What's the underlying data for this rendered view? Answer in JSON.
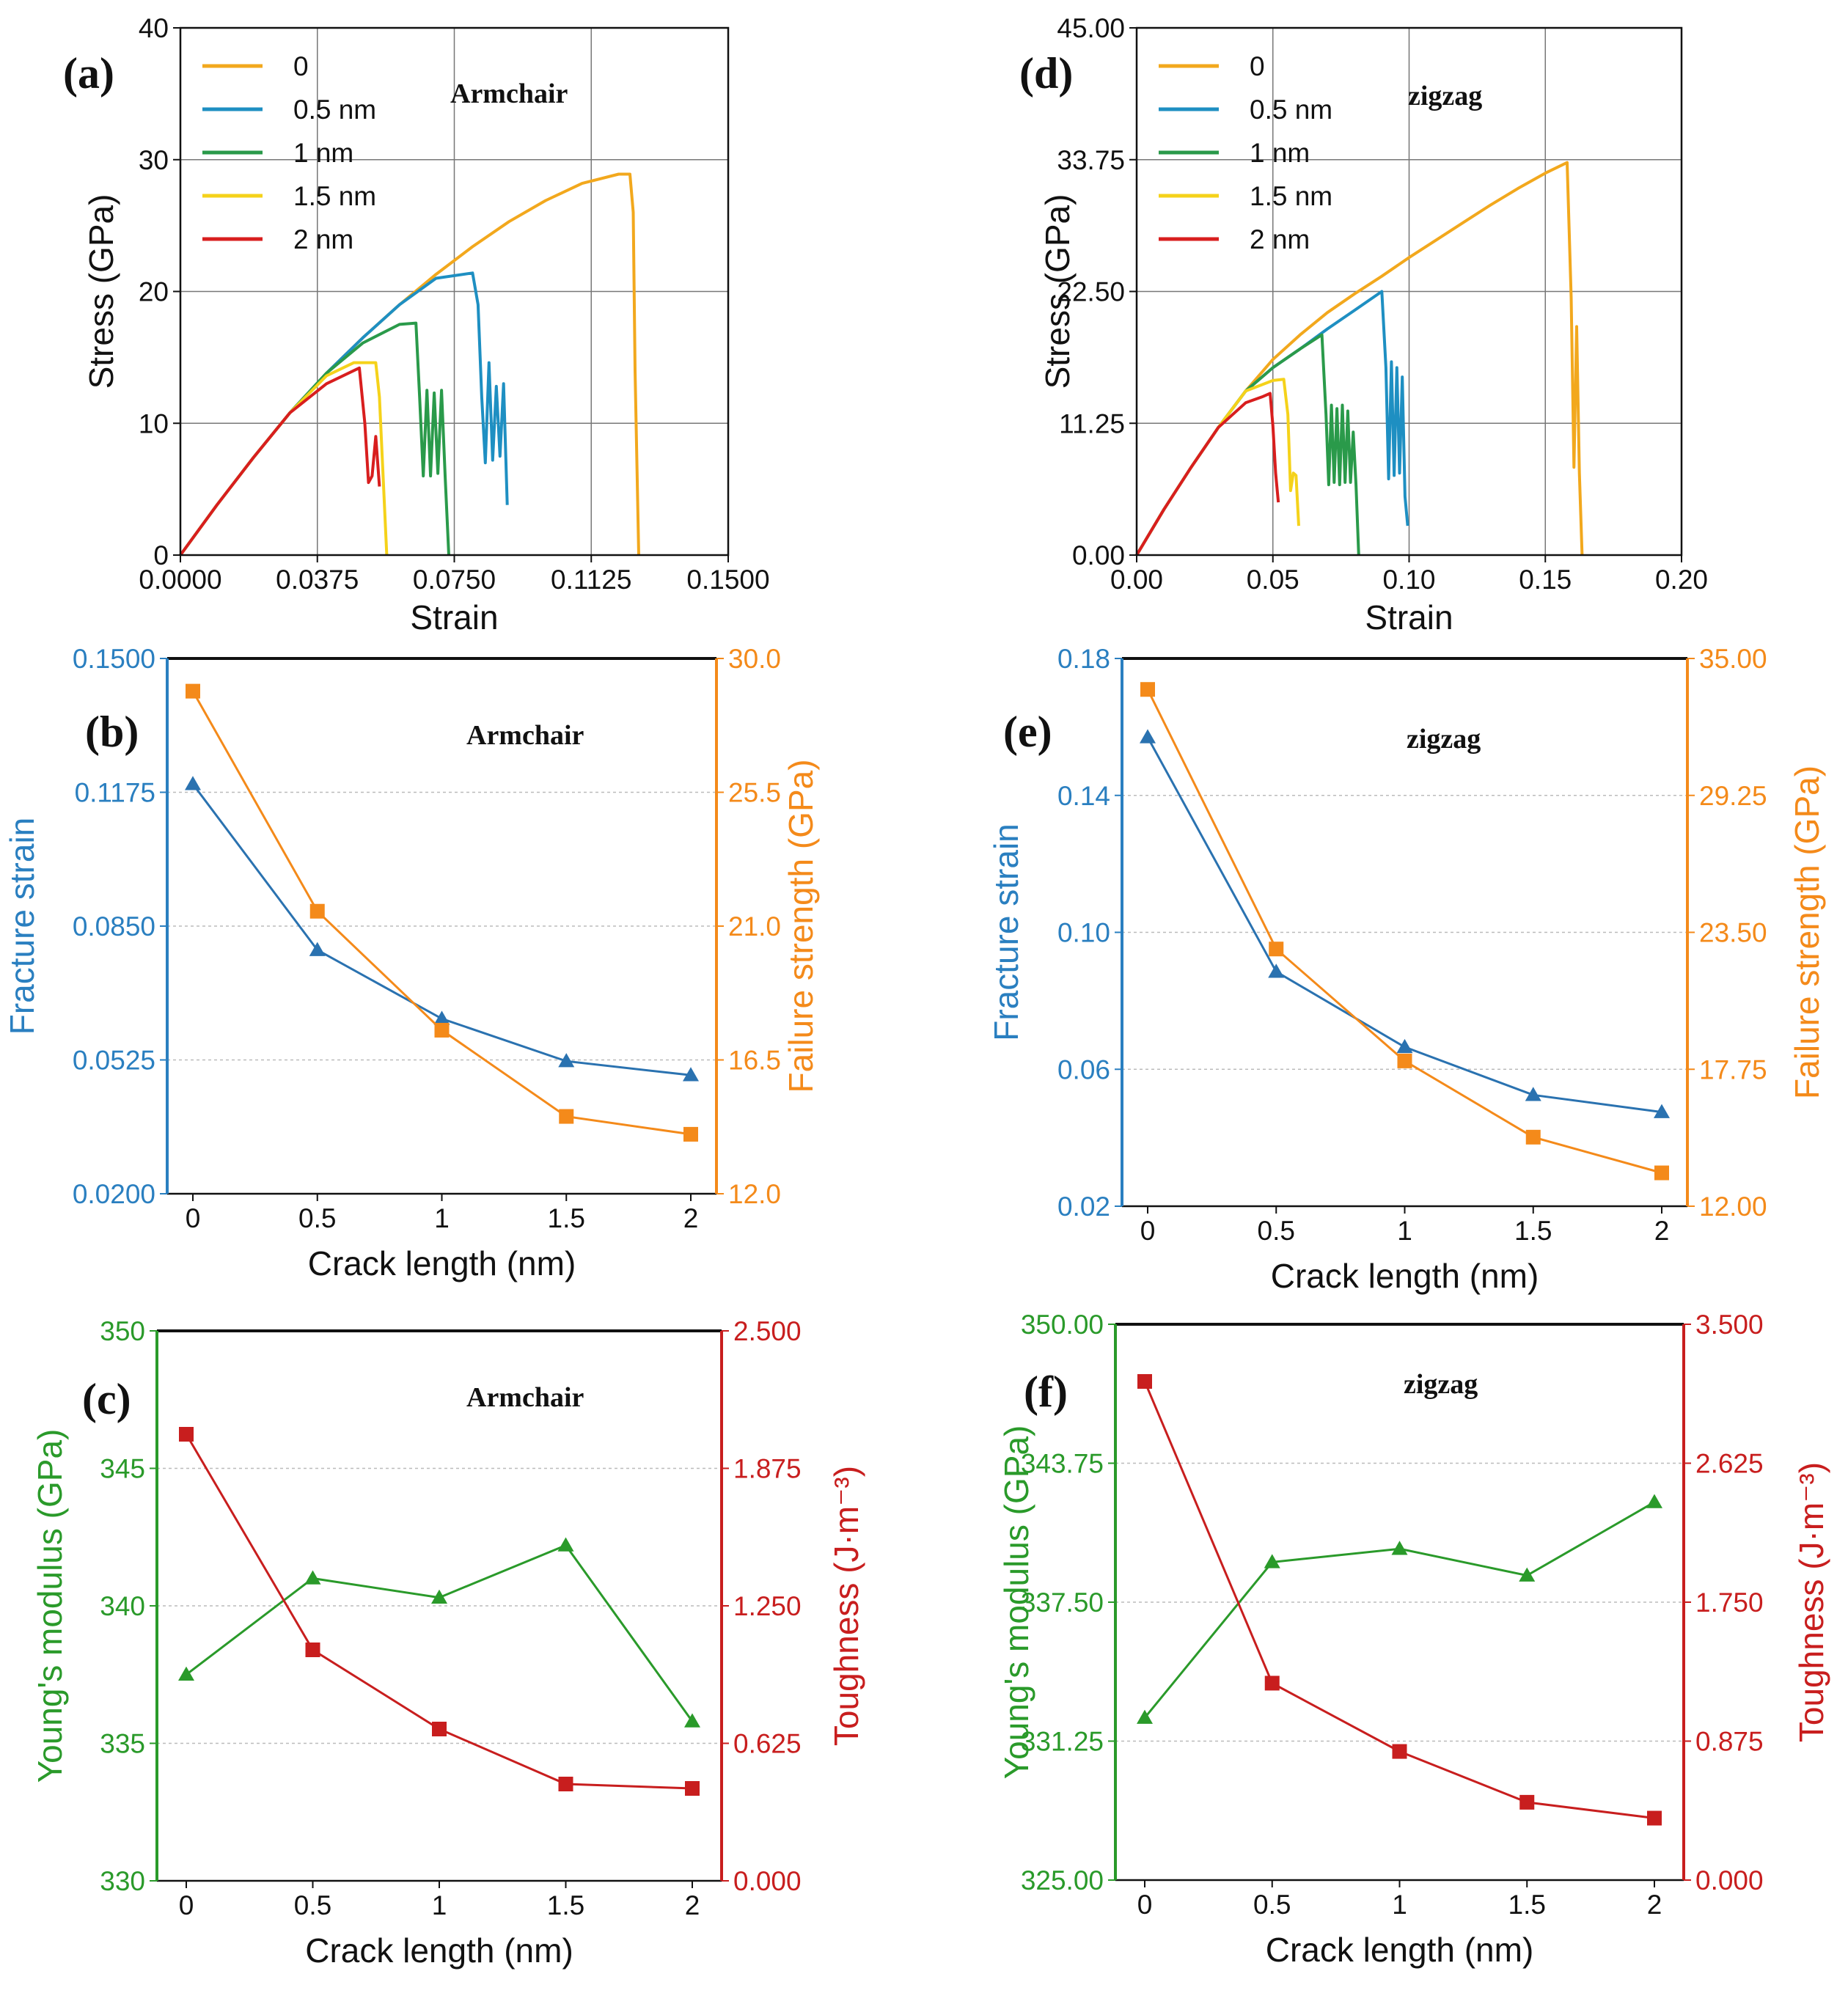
{
  "chart_data": [
    {
      "id": "a",
      "panel_label": "(a)",
      "type": "line",
      "annotation": "Armchair",
      "xlabel": "Strain",
      "ylabel": "Stress (GPa)",
      "xlim": [
        0,
        0.15
      ],
      "ylim": [
        0,
        40
      ],
      "xticks": [
        0,
        0.0375,
        0.075,
        0.1125,
        0.15
      ],
      "xtick_labels": [
        "0.0000",
        "0.0375",
        "0.0750",
        "0.1125",
        "0.1500"
      ],
      "yticks": [
        0,
        10,
        20,
        30,
        40
      ],
      "ytick_labels": [
        "0",
        "10",
        "20",
        "30",
        "40"
      ],
      "grid": true,
      "legend": "top-left",
      "series": [
        {
          "name": "0",
          "color": "#f2a81d",
          "x": [
            0,
            0.01,
            0.02,
            0.03,
            0.04,
            0.05,
            0.06,
            0.07,
            0.08,
            0.09,
            0.1,
            0.11,
            0.12,
            0.1231,
            0.124,
            0.1245,
            0.1255
          ],
          "y": [
            0,
            3.8,
            7.4,
            10.8,
            13.8,
            16.5,
            19.0,
            21.3,
            23.4,
            25.3,
            26.9,
            28.2,
            28.9,
            28.9,
            26.0,
            14.0,
            0
          ]
        },
        {
          "name": "0.5 nm",
          "color": "#1e8fc2",
          "x": [
            0,
            0.01,
            0.02,
            0.03,
            0.04,
            0.05,
            0.06,
            0.07,
            0.08,
            0.0815,
            0.0825,
            0.0835,
            0.0845,
            0.0855,
            0.0865,
            0.0875,
            0.0885,
            0.0895
          ],
          "y": [
            0,
            3.8,
            7.4,
            10.8,
            13.8,
            16.5,
            19.0,
            21.0,
            21.4,
            19.0,
            12.0,
            7.0,
            14.6,
            7.2,
            12.8,
            7.5,
            13.0,
            3.8
          ]
        },
        {
          "name": "1 nm",
          "color": "#2a9a4a",
          "x": [
            0,
            0.01,
            0.02,
            0.03,
            0.04,
            0.05,
            0.06,
            0.0645,
            0.0655,
            0.0665,
            0.0675,
            0.0685,
            0.0695,
            0.0705,
            0.0715,
            0.0725,
            0.0735
          ],
          "y": [
            0,
            3.8,
            7.4,
            10.8,
            13.8,
            16.1,
            17.5,
            17.6,
            12.0,
            6.0,
            12.5,
            6.0,
            12.3,
            6.2,
            12.5,
            6.0,
            0
          ]
        },
        {
          "name": "1.5 nm",
          "color": "#f5d21a",
          "x": [
            0,
            0.01,
            0.02,
            0.03,
            0.04,
            0.0475,
            0.0535,
            0.0545,
            0.0555,
            0.0565
          ],
          "y": [
            0,
            3.8,
            7.4,
            10.8,
            13.6,
            14.6,
            14.6,
            12.0,
            6.0,
            0
          ]
        },
        {
          "name": "2 nm",
          "color": "#d81e1e",
          "x": [
            0,
            0.01,
            0.02,
            0.03,
            0.04,
            0.049,
            0.0505,
            0.0515,
            0.0525,
            0.0535,
            0.0545
          ],
          "y": [
            0,
            3.8,
            7.4,
            10.8,
            13.0,
            14.2,
            10.0,
            5.5,
            6.0,
            9.0,
            5.2
          ]
        }
      ]
    },
    {
      "id": "d",
      "panel_label": "(d)",
      "type": "line",
      "annotation": "zigzag",
      "xlabel": "Strain",
      "ylabel": "Stress (GPa)",
      "xlim": [
        0,
        0.2
      ],
      "ylim": [
        0,
        45
      ],
      "xticks": [
        0,
        0.05,
        0.1,
        0.15,
        0.2
      ],
      "xtick_labels": [
        "0.00",
        "0.05",
        "0.10",
        "0.15",
        "0.20"
      ],
      "yticks": [
        0,
        11.25,
        22.5,
        33.75,
        45
      ],
      "ytick_labels": [
        "0.00",
        "11.25",
        "22.50",
        "33.75",
        "45.00"
      ],
      "grid": true,
      "legend": "top-left",
      "series": [
        {
          "name": "0",
          "color": "#f2a81d",
          "x": [
            0,
            0.01,
            0.02,
            0.03,
            0.04,
            0.05,
            0.06,
            0.07,
            0.08,
            0.09,
            0.1,
            0.11,
            0.12,
            0.13,
            0.14,
            0.15,
            0.158,
            0.1595,
            0.1605,
            0.1615,
            0.1625,
            0.1635
          ],
          "y": [
            0,
            3.9,
            7.5,
            10.9,
            14.0,
            16.7,
            18.8,
            20.7,
            22.3,
            23.8,
            25.4,
            26.9,
            28.4,
            29.9,
            31.3,
            32.6,
            33.5,
            22.0,
            7.5,
            19.5,
            7.0,
            0
          ]
        },
        {
          "name": "0.5 nm",
          "color": "#1e8fc2",
          "x": [
            0,
            0.01,
            0.02,
            0.03,
            0.04,
            0.05,
            0.06,
            0.07,
            0.08,
            0.09,
            0.0915,
            0.0925,
            0.0935,
            0.0945,
            0.0955,
            0.0965,
            0.0975,
            0.0985,
            0.0995
          ],
          "y": [
            0,
            3.9,
            7.5,
            10.9,
            14.0,
            16.0,
            17.6,
            19.3,
            20.9,
            22.5,
            16.0,
            6.5,
            16.5,
            6.8,
            16.0,
            7.0,
            15.2,
            5.0,
            2.5
          ]
        },
        {
          "name": "1 nm",
          "color": "#2a9a4a",
          "x": [
            0,
            0.01,
            0.02,
            0.03,
            0.04,
            0.05,
            0.06,
            0.068,
            0.0695,
            0.0705,
            0.0715,
            0.0725,
            0.0735,
            0.0745,
            0.0755,
            0.0765,
            0.0775,
            0.0785,
            0.0795,
            0.0805,
            0.0815
          ],
          "y": [
            0,
            3.9,
            7.5,
            10.9,
            14.0,
            16.0,
            17.6,
            18.8,
            12.0,
            6.0,
            12.8,
            6.2,
            12.5,
            6.0,
            12.8,
            6.2,
            12.3,
            6.2,
            10.5,
            6.0,
            0
          ]
        },
        {
          "name": "1.5 nm",
          "color": "#f5d21a",
          "x": [
            0,
            0.01,
            0.02,
            0.03,
            0.04,
            0.05,
            0.054,
            0.0555,
            0.0565,
            0.0575,
            0.0585,
            0.0595
          ],
          "y": [
            0,
            3.9,
            7.5,
            10.9,
            14.0,
            14.9,
            15.0,
            12.0,
            5.5,
            7.0,
            6.8,
            2.5
          ]
        },
        {
          "name": "2 nm",
          "color": "#d81e1e",
          "x": [
            0,
            0.01,
            0.02,
            0.03,
            0.04,
            0.046,
            0.049,
            0.05,
            0.051,
            0.052
          ],
          "y": [
            0,
            3.9,
            7.5,
            10.9,
            13.0,
            13.5,
            13.8,
            11.0,
            7.0,
            4.5
          ]
        }
      ]
    },
    {
      "id": "b",
      "panel_label": "(b)",
      "type": "line",
      "annotation": "Armchair",
      "xlabel": "Crack length (nm)",
      "ylabel": "Fracture strain",
      "y2label": "Failure strength (GPa)",
      "categories": [
        "0",
        "0.5",
        "1",
        "1.5",
        "2"
      ],
      "ylim": [
        0.02,
        0.15
      ],
      "yticks": [
        0.02,
        0.0525,
        0.085,
        0.1175,
        0.15
      ],
      "ytick_labels": [
        "0.0200",
        "0.0525",
        "0.0850",
        "0.1175",
        "0.1500"
      ],
      "y2lim": [
        12,
        30
      ],
      "y2ticks": [
        12,
        16.5,
        21,
        25.5,
        30
      ],
      "y2tick_labels": [
        "12.0",
        "16.5",
        "21.0",
        "25.5",
        "30.0"
      ],
      "left_color": "#2a7fc0",
      "right_color": "#f48a1a",
      "series": [
        {
          "name": "Fracture strain",
          "axis": "left",
          "marker": "triangle",
          "color": "#2a72b0",
          "values": [
            0.1195,
            0.0792,
            0.0625,
            0.0522,
            0.0488
          ]
        },
        {
          "name": "Failure strength",
          "axis": "right",
          "marker": "square",
          "color": "#f48a1a",
          "values": [
            28.9,
            21.5,
            17.5,
            14.6,
            14.0
          ]
        }
      ]
    },
    {
      "id": "e",
      "panel_label": "(e)",
      "type": "line",
      "annotation": "zigzag",
      "xlabel": "Crack length (nm)",
      "ylabel": "Fracture strain",
      "y2label": "Failure strength (GPa)",
      "categories": [
        "0",
        "0.5",
        "1",
        "1.5",
        "2"
      ],
      "ylim": [
        0.02,
        0.18
      ],
      "yticks": [
        0.02,
        0.06,
        0.1,
        0.14,
        0.18
      ],
      "ytick_labels": [
        "0.02",
        "0.06",
        "0.10",
        "0.14",
        "0.18"
      ],
      "y2lim": [
        12,
        35
      ],
      "y2ticks": [
        12,
        17.75,
        23.5,
        29.25,
        35
      ],
      "y2tick_labels": [
        "12.00",
        "17.75",
        "23.50",
        "29.25",
        "35.00"
      ],
      "left_color": "#2a7fc0",
      "right_color": "#f48a1a",
      "series": [
        {
          "name": "Fracture strain",
          "axis": "left",
          "marker": "triangle",
          "color": "#2a72b0",
          "values": [
            0.157,
            0.0885,
            0.0665,
            0.0525,
            0.0475
          ]
        },
        {
          "name": "Failure strength",
          "axis": "right",
          "marker": "square",
          "color": "#f48a1a",
          "values": [
            33.7,
            22.8,
            18.1,
            14.9,
            13.4
          ]
        }
      ]
    },
    {
      "id": "c",
      "panel_label": "(c)",
      "type": "line",
      "annotation": "Armchair",
      "xlabel": "Crack length (nm)",
      "ylabel": "Young's modulus (GPa)",
      "y2label": "Toughness (J·m⁻³)",
      "categories": [
        "0",
        "0.5",
        "1",
        "1.5",
        "2"
      ],
      "ylim": [
        330,
        350
      ],
      "yticks": [
        330,
        335,
        340,
        345,
        350
      ],
      "ytick_labels": [
        "330",
        "335",
        "340",
        "345",
        "350"
      ],
      "y2lim": [
        0,
        2.5
      ],
      "y2ticks": [
        0,
        0.625,
        1.25,
        1.875,
        2.5
      ],
      "y2tick_labels": [
        "0.000",
        "0.625",
        "1.250",
        "1.875",
        "2.500"
      ],
      "left_color": "#2a9a2a",
      "right_color": "#c81e1e",
      "series": [
        {
          "name": "Young's modulus",
          "axis": "left",
          "marker": "triangle",
          "color": "#2a9a2a",
          "values": [
            337.5,
            341.0,
            340.3,
            342.2,
            335.8
          ]
        },
        {
          "name": "Toughness",
          "axis": "right",
          "marker": "square",
          "color": "#c81e1e",
          "values": [
            2.03,
            1.05,
            0.69,
            0.44,
            0.42
          ]
        }
      ]
    },
    {
      "id": "f",
      "panel_label": "(f)",
      "type": "line",
      "annotation": "zigzag",
      "xlabel": "Crack length (nm)",
      "ylabel": "Young's modulus (GPa)",
      "y2label": "Toughness (J·m⁻³)",
      "categories": [
        "0",
        "0.5",
        "1",
        "1.5",
        "2"
      ],
      "ylim": [
        325,
        350
      ],
      "yticks": [
        325,
        331.25,
        337.5,
        343.75,
        350
      ],
      "ytick_labels": [
        "325.00",
        "331.25",
        "337.50",
        "343.75",
        "350.00"
      ],
      "y2lim": [
        0,
        3.5
      ],
      "y2ticks": [
        0,
        0.875,
        1.75,
        2.625,
        3.5
      ],
      "y2tick_labels": [
        "0.000",
        "0.875",
        "1.750",
        "2.625",
        "3.500"
      ],
      "left_color": "#2a9a2a",
      "right_color": "#c81e1e",
      "series": [
        {
          "name": "Young's modulus",
          "axis": "left",
          "marker": "triangle",
          "color": "#2a9a2a",
          "values": [
            332.3,
            339.3,
            339.9,
            338.7,
            342.0
          ]
        },
        {
          "name": "Toughness",
          "axis": "right",
          "marker": "square",
          "color": "#c81e1e",
          "values": [
            3.14,
            1.24,
            0.81,
            0.49,
            0.39
          ]
        }
      ]
    }
  ]
}
